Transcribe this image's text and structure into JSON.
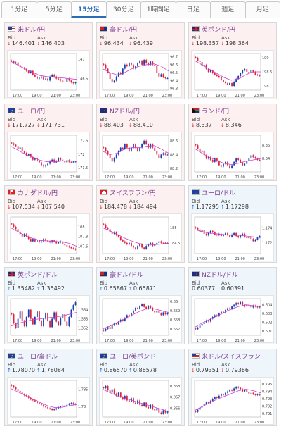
{
  "tabs": [
    {
      "label": "1分足",
      "active": false
    },
    {
      "label": "5分足",
      "active": false
    },
    {
      "label": "15分足",
      "active": true
    },
    {
      "label": "30分足",
      "active": false
    },
    {
      "label": "1時間足",
      "active": false
    },
    {
      "label": "日足",
      "active": false
    },
    {
      "label": "週足",
      "active": false
    },
    {
      "label": "月足",
      "active": false
    }
  ],
  "labels": {
    "bid": "Bid",
    "ask": "Ask"
  },
  "colors": {
    "up_candle": "#1a3fb0",
    "down_candle": "#e0233a",
    "ma_line": "#d03cd0",
    "bid_down": "#d0312d",
    "bid_up": "#1a64c8"
  },
  "cards": [
    {
      "pair": "米ドル/円",
      "flag": "us",
      "bg": "pink",
      "bid": "146.401",
      "ask": "146.403",
      "bid_dir": "down",
      "ask_dir": "down",
      "ylabels": [
        "147",
        "146.5"
      ],
      "xlabels": [
        "17:00",
        "19:00",
        "21:00",
        "23:00"
      ],
      "chart_data": {
        "type": "candlestick",
        "ylim": [
          146.2,
          147.15
        ],
        "closes": [
          146.95,
          146.9,
          146.92,
          146.85,
          146.8,
          146.78,
          146.75,
          146.7,
          146.65,
          146.7,
          146.6,
          146.55,
          146.5,
          146.52,
          146.55,
          146.48,
          146.5,
          146.45,
          146.55,
          146.6,
          146.55,
          146.5,
          146.48,
          146.45,
          146.4,
          146.42,
          146.5,
          146.45,
          146.4,
          146.38,
          146.4
        ],
        "ma": [
          146.95,
          146.85,
          146.75,
          146.66,
          146.58,
          146.55,
          146.53,
          146.52,
          146.5,
          146.48
        ]
      }
    },
    {
      "pair": "豪ドル/円",
      "flag": "au",
      "bg": "pink",
      "bid": "96.434",
      "ask": "96.439",
      "bid_dir": "down",
      "ask_dir": "down",
      "ylabels": [
        "96.7",
        "96.6",
        "96.5",
        "96.4",
        "96.3"
      ],
      "xlabels": [
        "17:00",
        "19:00",
        "21:00",
        "23:00"
      ],
      "chart_data": {
        "type": "candlestick",
        "ylim": [
          96.28,
          96.74
        ],
        "closes": [
          96.6,
          96.55,
          96.5,
          96.42,
          96.38,
          96.4,
          96.45,
          96.5,
          96.48,
          96.55,
          96.6,
          96.58,
          96.62,
          96.6,
          96.55,
          96.58,
          96.62,
          96.65,
          96.6,
          96.66,
          96.62,
          96.6,
          96.64,
          96.6,
          96.58,
          96.5,
          96.45,
          96.48,
          96.44,
          96.43,
          96.43
        ],
        "ma": [
          96.55,
          96.5,
          96.47,
          96.5,
          96.55,
          96.58,
          96.6,
          96.61,
          96.58,
          96.52
        ]
      }
    },
    {
      "pair": "英ポンド/円",
      "flag": "gb",
      "bg": "pink",
      "bid": "198.357",
      "ask": "198.364",
      "bid_dir": "down",
      "ask_dir": "down",
      "ylabels": [
        "199",
        "198.5",
        "198"
      ],
      "xlabels": [
        "17:00",
        "19:00",
        "21:00",
        "23:00"
      ],
      "chart_data": {
        "type": "candlestick",
        "ylim": [
          197.85,
          199.15
        ],
        "closes": [
          199.0,
          198.9,
          198.85,
          198.7,
          198.75,
          198.6,
          198.5,
          198.55,
          198.45,
          198.4,
          198.35,
          198.3,
          198.2,
          198.15,
          198.1,
          198.05,
          198.1,
          198.0,
          198.15,
          198.25,
          198.35,
          198.45,
          198.55,
          198.6,
          198.5,
          198.45,
          198.55,
          198.5,
          198.4,
          198.38,
          198.36
        ],
        "ma": [
          198.9,
          198.75,
          198.6,
          198.45,
          198.3,
          198.2,
          198.25,
          198.4,
          198.5,
          198.5
        ]
      }
    },
    {
      "pair": "ユーロ/円",
      "flag": "eu",
      "bg": "pink",
      "bid": "171.727",
      "ask": "171.731",
      "bid_dir": "down",
      "ask_dir": "down",
      "ylabels": [
        "172.5",
        "172",
        "171.5"
      ],
      "xlabels": [
        "17:00",
        "19:00",
        "21:00",
        "23:00"
      ],
      "chart_data": {
        "type": "candlestick",
        "ylim": [
          171.35,
          172.7
        ],
        "closes": [
          172.4,
          172.35,
          172.3,
          172.2,
          172.25,
          172.1,
          172.05,
          171.95,
          172.0,
          171.9,
          171.8,
          171.85,
          171.75,
          171.7,
          171.6,
          171.55,
          171.6,
          171.65,
          171.75,
          171.8,
          171.7,
          171.75,
          171.85,
          171.8,
          171.75,
          171.7,
          171.78,
          171.72,
          171.7,
          171.73,
          171.73
        ],
        "ma": [
          172.3,
          172.15,
          172.0,
          171.88,
          171.78,
          171.72,
          171.72,
          171.75,
          171.76,
          171.74
        ]
      }
    },
    {
      "pair": "NZドル/円",
      "flag": "nz",
      "bg": "pink",
      "bid": "88.403",
      "ask": "88.410",
      "bid_dir": "down",
      "ask_dir": "down",
      "ylabels": [
        "88.6",
        "88.4",
        "88.2"
      ],
      "xlabels": [
        "17:00",
        "19:00",
        "21:00",
        "23:00"
      ],
      "chart_data": {
        "type": "candlestick",
        "ylim": [
          88.15,
          88.68
        ],
        "closes": [
          88.5,
          88.45,
          88.4,
          88.35,
          88.3,
          88.35,
          88.4,
          88.45,
          88.5,
          88.48,
          88.55,
          88.5,
          88.45,
          88.5,
          88.55,
          88.5,
          88.45,
          88.5,
          88.55,
          88.6,
          88.55,
          88.5,
          88.55,
          88.5,
          88.45,
          88.4,
          88.35,
          88.4,
          88.42,
          88.4,
          88.4
        ],
        "ma": [
          88.45,
          88.4,
          88.42,
          88.48,
          88.5,
          88.5,
          88.52,
          88.53,
          88.48,
          88.42
        ]
      }
    },
    {
      "pair": "ランド/円",
      "flag": "za",
      "bg": "pink",
      "bid": "8.337",
      "ask": "8.346",
      "bid_dir": "down",
      "ask_dir": "down",
      "ylabels": [
        "8.36",
        "8.34"
      ],
      "xlabels": [
        "17:00",
        "19:00",
        "21:00",
        "23:00"
      ],
      "chart_data": {
        "type": "candlestick",
        "ylim": [
          8.32,
          8.375
        ],
        "closes": [
          8.36,
          8.355,
          8.35,
          8.352,
          8.345,
          8.34,
          8.342,
          8.338,
          8.335,
          8.34,
          8.336,
          8.33,
          8.328,
          8.332,
          8.335,
          8.33,
          8.326,
          8.33,
          8.335,
          8.34,
          8.338,
          8.334,
          8.33,
          8.332,
          8.336,
          8.34,
          8.345,
          8.342,
          8.34,
          8.338,
          8.337
        ],
        "ma": [
          8.355,
          8.348,
          8.342,
          8.337,
          8.333,
          8.331,
          8.333,
          8.336,
          8.338,
          8.34
        ]
      }
    },
    {
      "pair": "カナダドル/円",
      "flag": "ca",
      "bg": "pink",
      "bid": "107.534",
      "ask": "107.540",
      "bid_dir": "down",
      "ask_dir": "down",
      "ylabels": [
        "108",
        "107.8",
        "107.6"
      ],
      "xlabels": [
        "17:00",
        "19:00",
        "21:00",
        "23:00"
      ],
      "chart_data": {
        "type": "candlestick",
        "ylim": [
          107.45,
          108.2
        ],
        "closes": [
          108.05,
          108.0,
          107.95,
          107.9,
          107.85,
          107.8,
          107.85,
          107.8,
          107.75,
          107.7,
          107.75,
          107.7,
          107.72,
          107.68,
          107.7,
          107.75,
          107.72,
          107.7,
          107.68,
          107.72,
          107.7,
          107.66,
          107.68,
          107.7,
          107.65,
          107.62,
          107.6,
          107.58,
          107.56,
          107.55,
          107.53
        ],
        "ma": [
          107.98,
          107.9,
          107.82,
          107.76,
          107.72,
          107.71,
          107.7,
          107.69,
          107.66,
          107.6
        ]
      }
    },
    {
      "pair": "スイスフラン/円",
      "flag": "ch",
      "bg": "pink",
      "bid": "184.478",
      "ask": "184.494",
      "bid_dir": "down",
      "ask_dir": "down",
      "ylabels": [
        "185",
        "184.5"
      ],
      "xlabels": [
        "17:00",
        "19:00",
        "21:00",
        "23:00"
      ],
      "chart_data": {
        "type": "candlestick",
        "ylim": [
          184.15,
          185.35
        ],
        "closes": [
          185.1,
          185.0,
          184.95,
          184.85,
          184.8,
          184.85,
          184.75,
          184.7,
          184.6,
          184.55,
          184.5,
          184.45,
          184.5,
          184.4,
          184.35,
          184.3,
          184.4,
          184.45,
          184.35,
          184.3,
          184.4,
          184.45,
          184.5,
          184.4,
          184.45,
          184.5,
          184.55,
          184.5,
          184.48,
          184.5,
          184.48
        ],
        "ma": [
          185.0,
          184.9,
          184.78,
          184.66,
          184.56,
          184.48,
          184.45,
          184.44,
          184.46,
          184.49
        ]
      }
    },
    {
      "pair": "ユーロ/ドル",
      "flag": "eu",
      "bg": "blue",
      "bid": "1.17295",
      "ask": "1.17298",
      "bid_dir": "up",
      "ask_dir": "up",
      "ylabels": [
        "1.174",
        "1.172"
      ],
      "xlabels": [
        "17:00",
        "19:00",
        "21:00",
        "23:00"
      ],
      "chart_data": {
        "type": "candlestick",
        "ylim": [
          1.1705,
          1.1755
        ],
        "closes": [
          1.174,
          1.1738,
          1.1735,
          1.1737,
          1.1732,
          1.173,
          1.1733,
          1.1736,
          1.1734,
          1.1731,
          1.173,
          1.1732,
          1.1729,
          1.1731,
          1.1733,
          1.173,
          1.1728,
          1.1731,
          1.1733,
          1.1729,
          1.1727,
          1.173,
          1.1732,
          1.1728,
          1.1726,
          1.1728,
          1.1725,
          1.1722,
          1.1724,
          1.1727,
          1.1729
        ],
        "ma": [
          1.1738,
          1.1735,
          1.1733,
          1.1732,
          1.1731,
          1.173,
          1.173,
          1.1729,
          1.1728,
          1.1727
        ]
      }
    },
    {
      "pair": "英ポンド/ドル",
      "flag": "gb",
      "bg": "blue",
      "bid": "1.35482",
      "ask": "1.35492",
      "bid_dir": "up",
      "ask_dir": "up",
      "ylabels": [
        "1.354",
        "1.353",
        "1.352"
      ],
      "xlabels": [
        "17:00",
        "19:00",
        "21:00",
        "23:00"
      ],
      "chart_data": {
        "type": "candlestick",
        "ylim": [
          1.3512,
          1.3552
        ],
        "closes": [
          1.3535,
          1.3525,
          1.352,
          1.353,
          1.3538,
          1.3528,
          1.3522,
          1.3532,
          1.354,
          1.353,
          1.3524,
          1.3532,
          1.3538,
          1.3528,
          1.3522,
          1.353,
          1.3536,
          1.3528,
          1.3521,
          1.353,
          1.3537,
          1.3527,
          1.3523,
          1.3531,
          1.3535,
          1.3527,
          1.3522,
          1.3532,
          1.354,
          1.3545,
          1.3548
        ],
        "ma": [
          1.3522,
          1.3525,
          1.3527,
          1.3529,
          1.353,
          1.3531,
          1.3532,
          1.3533,
          1.3535,
          1.3537
        ]
      }
    },
    {
      "pair": "豪ドル/ドル",
      "flag": "au",
      "bg": "blue",
      "bid": "0.65867",
      "ask": "0.65871",
      "bid_dir": "up",
      "ask_dir": "up",
      "ylabels": [
        "0.66",
        "0.659",
        "0.658",
        "0.657"
      ],
      "xlabels": [
        "17:00",
        "19:00",
        "21:00",
        "23:00"
      ],
      "chart_data": {
        "type": "candlestick",
        "ylim": [
          0.6563,
          0.6603
        ],
        "closes": [
          0.6568,
          0.657,
          0.6572,
          0.657,
          0.6574,
          0.6576,
          0.6575,
          0.6578,
          0.658,
          0.6579,
          0.6582,
          0.6585,
          0.6584,
          0.6587,
          0.659,
          0.6593,
          0.6592,
          0.6595,
          0.6597,
          0.6594,
          0.6592,
          0.6595,
          0.6593,
          0.659,
          0.6588,
          0.659,
          0.6587,
          0.6585,
          0.6588,
          0.6586,
          0.6587
        ],
        "ma": [
          0.657,
          0.6573,
          0.6577,
          0.6581,
          0.6585,
          0.6589,
          0.6592,
          0.6592,
          0.659,
          0.6588
        ]
      }
    },
    {
      "pair": "NZドル/ドル",
      "flag": "nz",
      "bg": "blue",
      "bid": "0.60377",
      "ask": "0.60391",
      "bid_dir": "none",
      "ask_dir": "none",
      "ylabels": [
        "0.604",
        "0.603",
        "0.602",
        "0.601"
      ],
      "xlabels": [
        "17:00",
        "19:00",
        "21:00",
        "23:00"
      ],
      "chart_data": {
        "type": "candlestick",
        "ylim": [
          0.6005,
          0.6047
        ],
        "closes": [
          0.6012,
          0.6014,
          0.6016,
          0.6018,
          0.602,
          0.6022,
          0.6021,
          0.6024,
          0.6026,
          0.6028,
          0.6027,
          0.603,
          0.6032,
          0.6031,
          0.6034,
          0.6036,
          0.6035,
          0.6038,
          0.604,
          0.6042,
          0.6041,
          0.6043,
          0.604,
          0.6038,
          0.604,
          0.6039,
          0.6037,
          0.6039,
          0.6038,
          0.6037,
          0.6038
        ],
        "ma": [
          0.6014,
          0.6019,
          0.6023,
          0.6027,
          0.6031,
          0.6035,
          0.6038,
          0.604,
          0.6039,
          0.6038
        ]
      }
    },
    {
      "pair": "ユーロ/豪ドル",
      "flag": "eu",
      "bg": "blue",
      "bid": "1.78070",
      "ask": "1.78084",
      "bid_dir": "up",
      "ask_dir": "up",
      "ylabels": [
        "1.785",
        "1.78"
      ],
      "xlabels": [
        "17:00",
        "19:00",
        "21:00",
        "23:00"
      ],
      "chart_data": {
        "type": "candlestick",
        "ylim": [
          1.777,
          1.7875
        ],
        "closes": [
          1.786,
          1.7855,
          1.785,
          1.7845,
          1.784,
          1.7835,
          1.7832,
          1.783,
          1.7825,
          1.782,
          1.7818,
          1.7815,
          1.781,
          1.7808,
          1.7805,
          1.78,
          1.7798,
          1.7795,
          1.7793,
          1.779,
          1.7792,
          1.7795,
          1.7798,
          1.78,
          1.7803,
          1.78,
          1.7805,
          1.7808,
          1.781,
          1.7806,
          1.7807
        ],
        "ma": [
          1.7852,
          1.7842,
          1.7832,
          1.7822,
          1.7812,
          1.7803,
          1.7797,
          1.7798,
          1.7802,
          1.7806
        ]
      }
    },
    {
      "pair": "ユーロ/英ポンド",
      "flag": "eu",
      "bg": "blue",
      "bid": "0.86570",
      "ask": "0.86578",
      "bid_dir": "up",
      "ask_dir": "up",
      "ylabels": [
        "0.868",
        "0.867",
        "0.866"
      ],
      "xlabels": [
        "17:00",
        "19:00",
        "21:00",
        "23:00"
      ],
      "chart_data": {
        "type": "candlestick",
        "ylim": [
          0.8652,
          0.8685
        ],
        "closes": [
          0.8678,
          0.868,
          0.8676,
          0.8674,
          0.8677,
          0.8673,
          0.8671,
          0.8674,
          0.867,
          0.8668,
          0.8671,
          0.8667,
          0.8666,
          0.8669,
          0.8665,
          0.8664,
          0.8667,
          0.8663,
          0.8662,
          0.8665,
          0.8661,
          0.866,
          0.8663,
          0.8659,
          0.8658,
          0.866,
          0.8656,
          0.8655,
          0.8658,
          0.8656,
          0.8657
        ],
        "ma": [
          0.8677,
          0.8674,
          0.8671,
          0.8669,
          0.8667,
          0.8665,
          0.8663,
          0.8661,
          0.8659,
          0.8657
        ]
      }
    },
    {
      "pair": "米ドル/スイスフラン",
      "flag": "us",
      "bg": "blue",
      "bid": "0.79351",
      "ask": "0.79366",
      "bid_dir": "down",
      "ask_dir": "down",
      "ylabels": [
        "0.795",
        "0.794",
        "0.793",
        "0.792",
        "0.791"
      ],
      "xlabels": [
        "17:00",
        "19:00",
        "21:00",
        "23:00"
      ],
      "chart_data": {
        "type": "candlestick",
        "ylim": [
          0.7905,
          0.7955
        ],
        "closes": [
          0.7912,
          0.7915,
          0.7918,
          0.792,
          0.7923,
          0.7925,
          0.7924,
          0.7927,
          0.793,
          0.7932,
          0.7931,
          0.7934,
          0.7936,
          0.7935,
          0.7938,
          0.794,
          0.7942,
          0.7941,
          0.7944,
          0.7946,
          0.7945,
          0.7943,
          0.794,
          0.7942,
          0.7939,
          0.7937,
          0.7938,
          0.7936,
          0.7935,
          0.7936,
          0.7935
        ],
        "ma": [
          0.7914,
          0.7919,
          0.7924,
          0.7929,
          0.7933,
          0.7937,
          0.7941,
          0.7943,
          0.7941,
          0.7938
        ]
      }
    }
  ]
}
